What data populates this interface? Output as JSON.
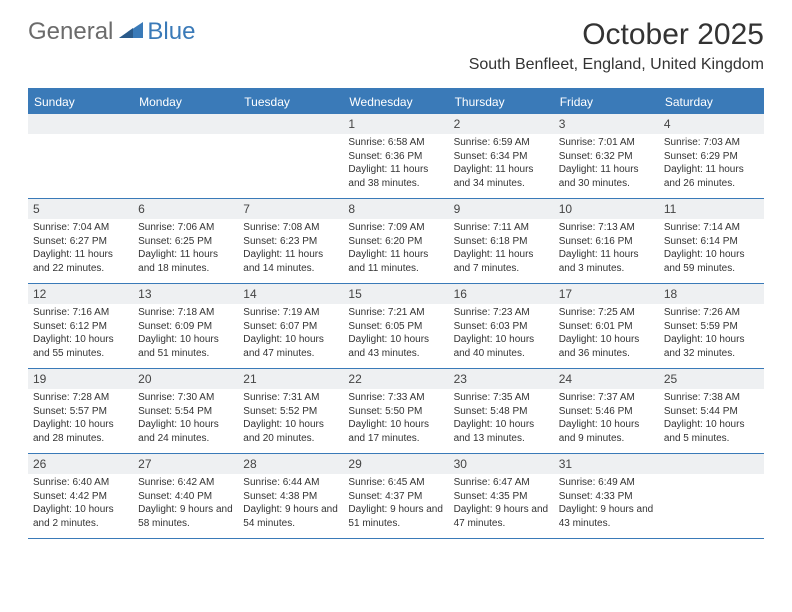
{
  "logo": {
    "general": "General",
    "blue": "Blue"
  },
  "title": "October 2025",
  "location": "South Benfleet, England, United Kingdom",
  "colors": {
    "brand": "#3a7ab8",
    "logo_gray": "#6b6b6b",
    "daynum_bg": "#eef0f2",
    "text": "#333333",
    "bg": "#ffffff"
  },
  "dayHeaders": [
    "Sunday",
    "Monday",
    "Tuesday",
    "Wednesday",
    "Thursday",
    "Friday",
    "Saturday"
  ],
  "weeks": [
    [
      null,
      null,
      null,
      {
        "n": "1",
        "sr": "6:58 AM",
        "ss": "6:36 PM",
        "dl": "11 hours and 38 minutes."
      },
      {
        "n": "2",
        "sr": "6:59 AM",
        "ss": "6:34 PM",
        "dl": "11 hours and 34 minutes."
      },
      {
        "n": "3",
        "sr": "7:01 AM",
        "ss": "6:32 PM",
        "dl": "11 hours and 30 minutes."
      },
      {
        "n": "4",
        "sr": "7:03 AM",
        "ss": "6:29 PM",
        "dl": "11 hours and 26 minutes."
      }
    ],
    [
      {
        "n": "5",
        "sr": "7:04 AM",
        "ss": "6:27 PM",
        "dl": "11 hours and 22 minutes."
      },
      {
        "n": "6",
        "sr": "7:06 AM",
        "ss": "6:25 PM",
        "dl": "11 hours and 18 minutes."
      },
      {
        "n": "7",
        "sr": "7:08 AM",
        "ss": "6:23 PM",
        "dl": "11 hours and 14 minutes."
      },
      {
        "n": "8",
        "sr": "7:09 AM",
        "ss": "6:20 PM",
        "dl": "11 hours and 11 minutes."
      },
      {
        "n": "9",
        "sr": "7:11 AM",
        "ss": "6:18 PM",
        "dl": "11 hours and 7 minutes."
      },
      {
        "n": "10",
        "sr": "7:13 AM",
        "ss": "6:16 PM",
        "dl": "11 hours and 3 minutes."
      },
      {
        "n": "11",
        "sr": "7:14 AM",
        "ss": "6:14 PM",
        "dl": "10 hours and 59 minutes."
      }
    ],
    [
      {
        "n": "12",
        "sr": "7:16 AM",
        "ss": "6:12 PM",
        "dl": "10 hours and 55 minutes."
      },
      {
        "n": "13",
        "sr": "7:18 AM",
        "ss": "6:09 PM",
        "dl": "10 hours and 51 minutes."
      },
      {
        "n": "14",
        "sr": "7:19 AM",
        "ss": "6:07 PM",
        "dl": "10 hours and 47 minutes."
      },
      {
        "n": "15",
        "sr": "7:21 AM",
        "ss": "6:05 PM",
        "dl": "10 hours and 43 minutes."
      },
      {
        "n": "16",
        "sr": "7:23 AM",
        "ss": "6:03 PM",
        "dl": "10 hours and 40 minutes."
      },
      {
        "n": "17",
        "sr": "7:25 AM",
        "ss": "6:01 PM",
        "dl": "10 hours and 36 minutes."
      },
      {
        "n": "18",
        "sr": "7:26 AM",
        "ss": "5:59 PM",
        "dl": "10 hours and 32 minutes."
      }
    ],
    [
      {
        "n": "19",
        "sr": "7:28 AM",
        "ss": "5:57 PM",
        "dl": "10 hours and 28 minutes."
      },
      {
        "n": "20",
        "sr": "7:30 AM",
        "ss": "5:54 PM",
        "dl": "10 hours and 24 minutes."
      },
      {
        "n": "21",
        "sr": "7:31 AM",
        "ss": "5:52 PM",
        "dl": "10 hours and 20 minutes."
      },
      {
        "n": "22",
        "sr": "7:33 AM",
        "ss": "5:50 PM",
        "dl": "10 hours and 17 minutes."
      },
      {
        "n": "23",
        "sr": "7:35 AM",
        "ss": "5:48 PM",
        "dl": "10 hours and 13 minutes."
      },
      {
        "n": "24",
        "sr": "7:37 AM",
        "ss": "5:46 PM",
        "dl": "10 hours and 9 minutes."
      },
      {
        "n": "25",
        "sr": "7:38 AM",
        "ss": "5:44 PM",
        "dl": "10 hours and 5 minutes."
      }
    ],
    [
      {
        "n": "26",
        "sr": "6:40 AM",
        "ss": "4:42 PM",
        "dl": "10 hours and 2 minutes."
      },
      {
        "n": "27",
        "sr": "6:42 AM",
        "ss": "4:40 PM",
        "dl": "9 hours and 58 minutes."
      },
      {
        "n": "28",
        "sr": "6:44 AM",
        "ss": "4:38 PM",
        "dl": "9 hours and 54 minutes."
      },
      {
        "n": "29",
        "sr": "6:45 AM",
        "ss": "4:37 PM",
        "dl": "9 hours and 51 minutes."
      },
      {
        "n": "30",
        "sr": "6:47 AM",
        "ss": "4:35 PM",
        "dl": "9 hours and 47 minutes."
      },
      {
        "n": "31",
        "sr": "6:49 AM",
        "ss": "4:33 PM",
        "dl": "9 hours and 43 minutes."
      },
      null
    ]
  ],
  "labels": {
    "sunrise": "Sunrise:",
    "sunset": "Sunset:",
    "daylight": "Daylight:"
  }
}
